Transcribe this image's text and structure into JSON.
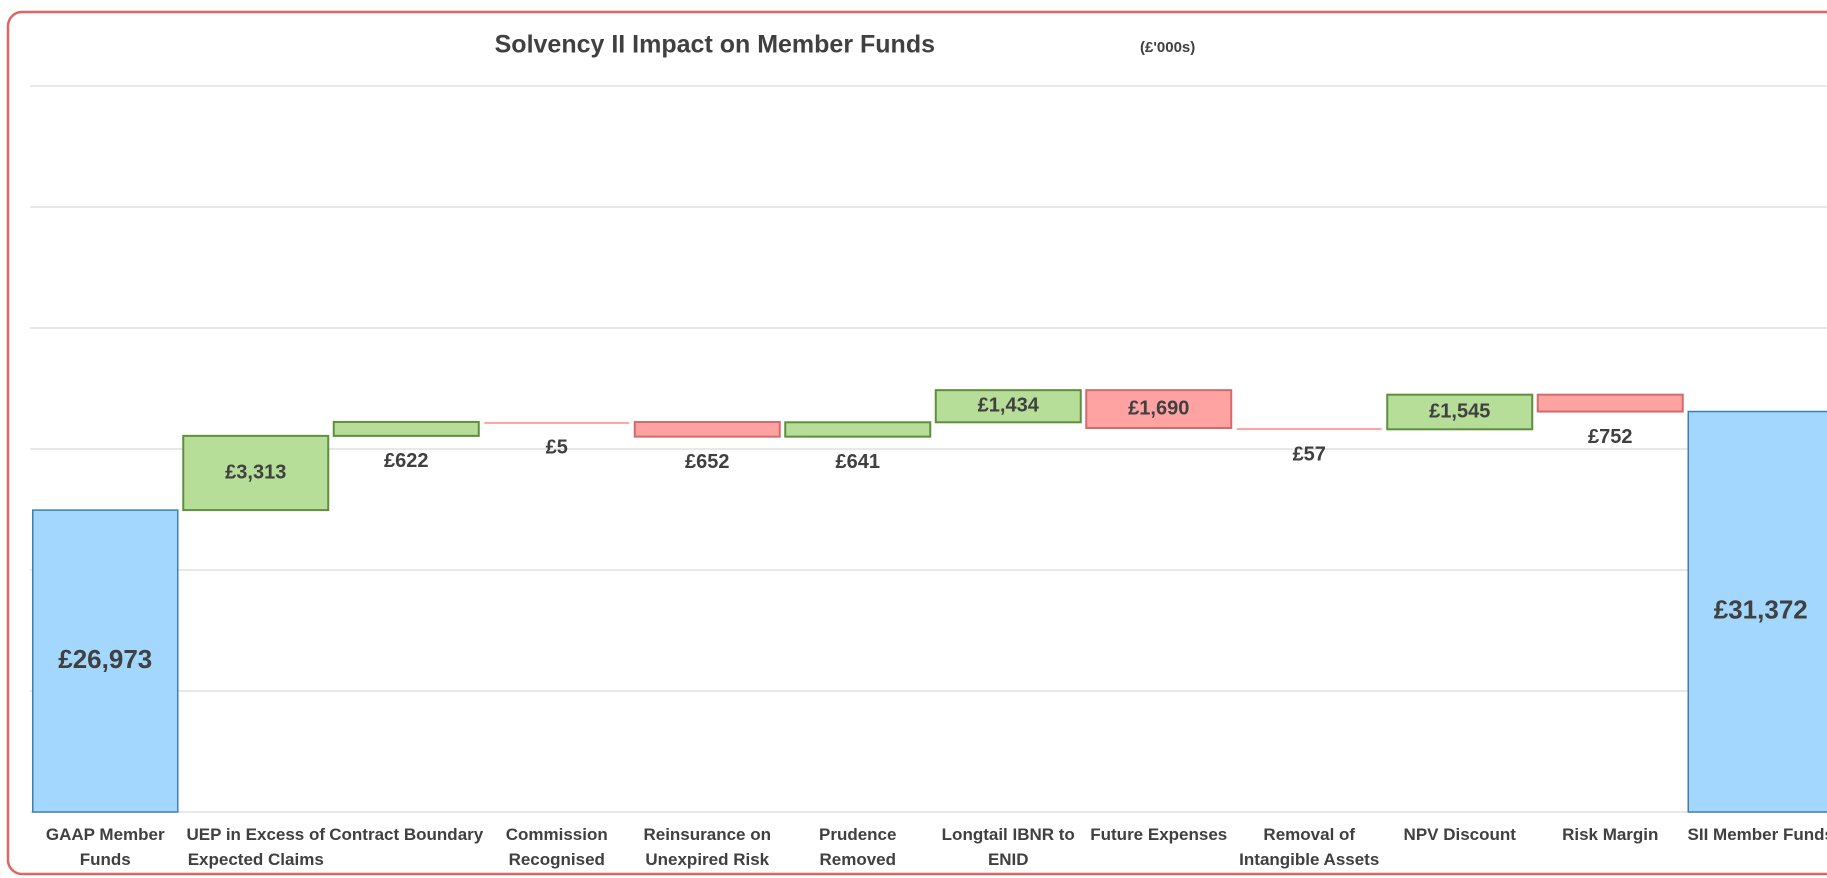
{
  "chart_data": {
    "type": "waterfall",
    "title": "Solvency II Impact on Member Funds",
    "subtitle": "(£'000s)",
    "categories": [
      "GAAP Member Funds",
      "UEP in Excess of Expected Claims",
      "Contract Boundary",
      "Commission Recognised",
      "Reinsurance on Unexpired Risk",
      "Prudence Removed",
      "Longtail IBNR to ENID",
      "Future Expenses",
      "Removal of Intangible Assets",
      "NPV Discount",
      "Risk Margin",
      "SII Member Funds"
    ],
    "values": [
      26973,
      3313,
      622,
      -5,
      -652,
      641,
      1434,
      -1690,
      -57,
      1545,
      -752,
      31372
    ],
    "value_labels": [
      "£26,973",
      "£3,313",
      "£622",
      "£5",
      "£652",
      "£641",
      "£1,434",
      "£1,690",
      "£57",
      "£1,545",
      "£752",
      "£31,372"
    ],
    "total_color": "#a3d7fd",
    "increase_color": "#b6de98",
    "decrease_color": "#ffa2a2",
    "ylim": [
      13500,
      45900
    ],
    "yticks": [
      13500,
      18900,
      24300,
      29700,
      35100,
      40500,
      45900
    ],
    "grid": true
  }
}
